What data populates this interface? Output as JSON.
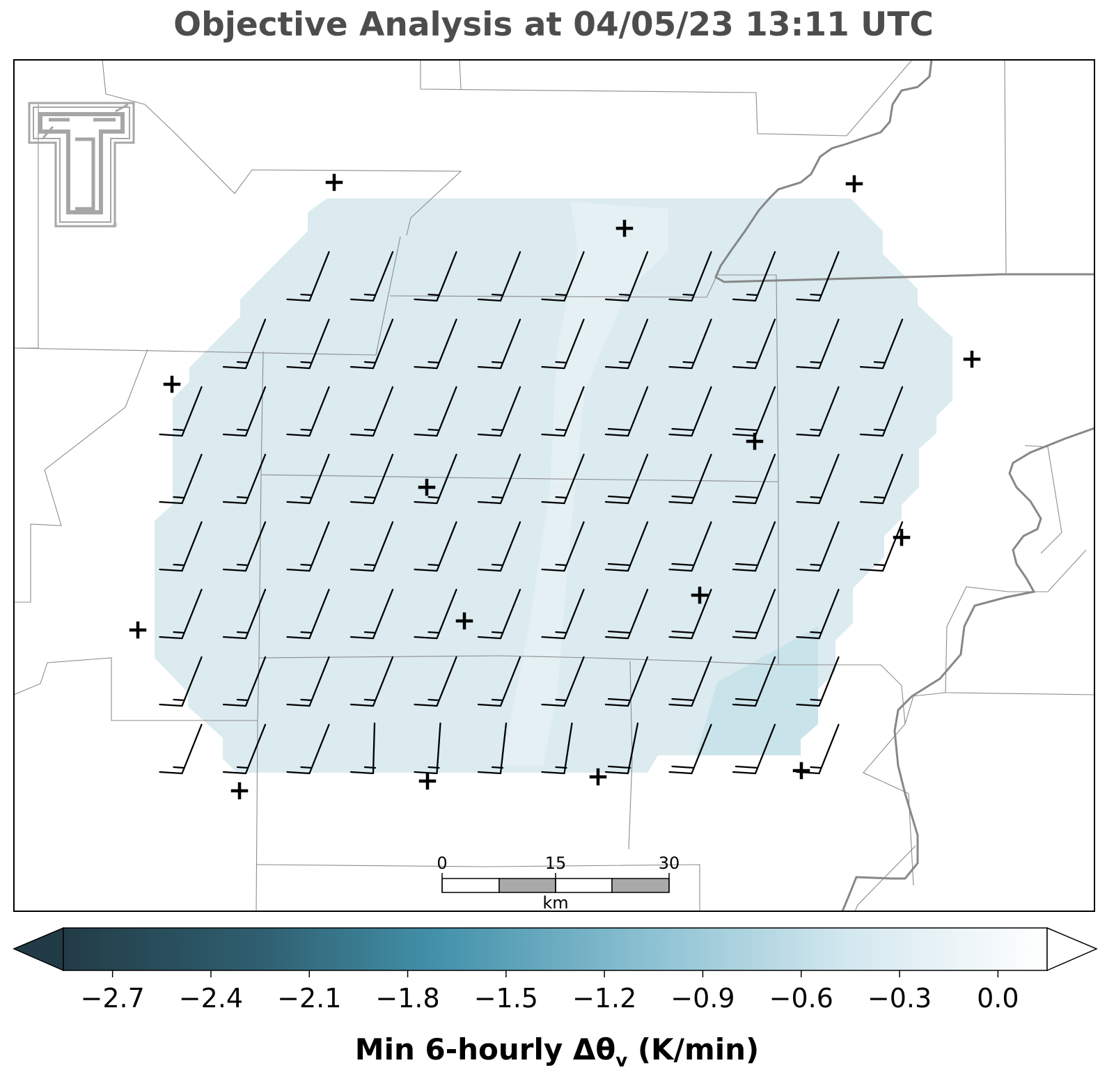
{
  "title": "Objective Analysis at 04/05/23 13:11 UTC",
  "logo": {
    "name": "texas-tech-double-t-logo",
    "registered_mark": "®",
    "color": "#a6a6a6"
  },
  "colorbar": {
    "label_main": "Min 6-hourly Δθ",
    "label_sub": "v",
    "label_unit": " (K/min)",
    "ticks": [
      "−2.7",
      "−2.4",
      "−2.1",
      "−1.8",
      "−1.5",
      "−1.2",
      "−0.9",
      "−0.6",
      "−0.3",
      "0.0"
    ],
    "tick_values": [
      -2.7,
      -2.4,
      -2.1,
      -1.8,
      -1.5,
      -1.2,
      -0.9,
      -0.6,
      -0.3,
      0.0
    ],
    "range": [
      -2.85,
      0.15
    ],
    "extend": "both",
    "colors": [
      "#233f4b",
      "#2f5f70",
      "#4390a8",
      "#97c9da",
      "#e4f0f4",
      "#ffffff"
    ]
  },
  "scale_bar": {
    "ticks": [
      "0",
      "15",
      "30"
    ],
    "unit": "km"
  },
  "map": {
    "analysis_fill": "#dcecf1",
    "wind_barb_color": "#000000",
    "station_marker": "+",
    "county_line_color": "#8c8c8c",
    "state_line_color": "#8a8a8a"
  }
}
